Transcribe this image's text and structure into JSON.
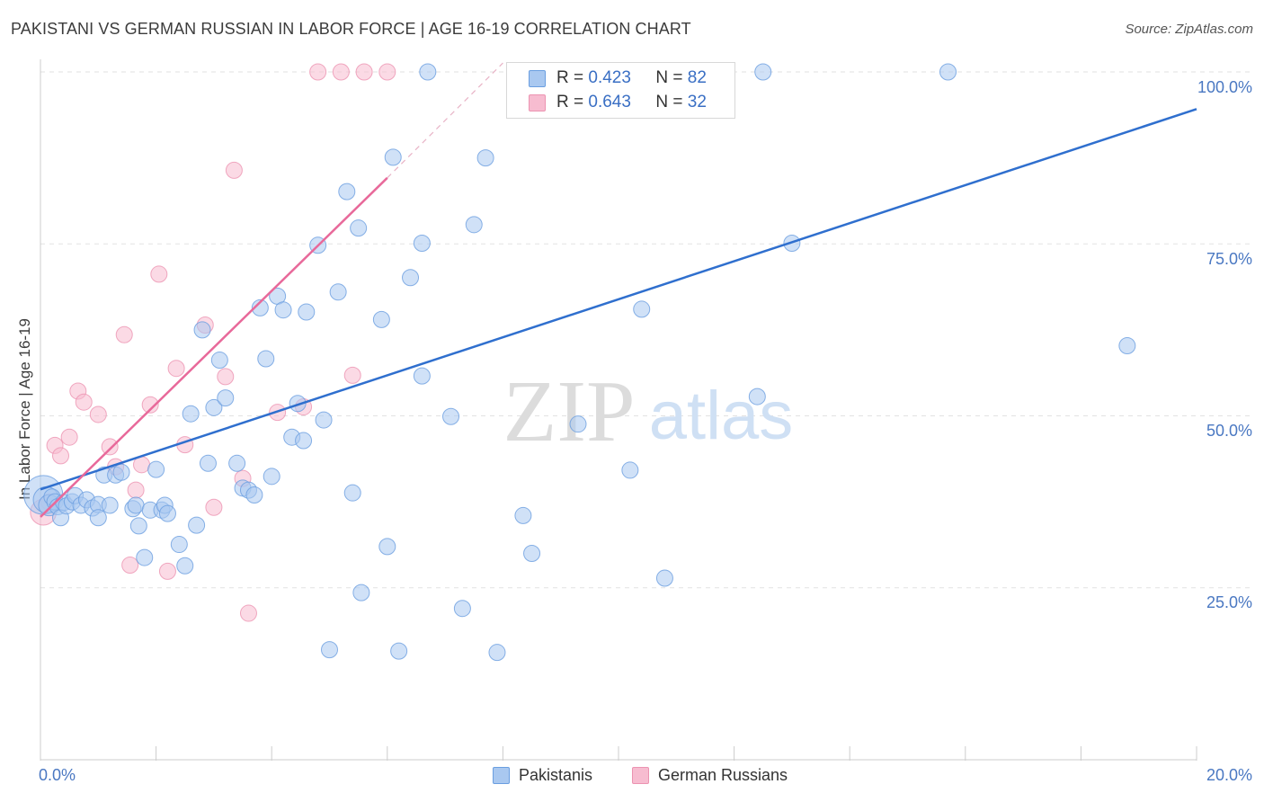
{
  "title": "PAKISTANI VS GERMAN RUSSIAN IN LABOR FORCE | AGE 16-19 CORRELATION CHART",
  "source": "Source: ZipAtlas.com",
  "watermark": {
    "zip": "ZIP",
    "atlas": "atlas"
  },
  "colors": {
    "blue_fill": "#a9c8f0",
    "blue_stroke": "#6a9ee0",
    "blue_line": "#2f6fce",
    "pink_fill": "#f7bcd0",
    "pink_stroke": "#ec93b1",
    "pink_line": "#e8699a",
    "axis_text": "#4a78c2"
  },
  "legend": {
    "rows": [
      {
        "r_label": "R = ",
        "r_value": "0.423",
        "n_label": "N = ",
        "n_value": "82"
      },
      {
        "r_label": "R = ",
        "r_value": "0.643",
        "n_label": "N = ",
        "n_value": "32"
      }
    ]
  },
  "bottom_legend": [
    "Pakistanis",
    "German Russians"
  ],
  "chart_data": {
    "type": "scatter",
    "title": "PAKISTANI VS GERMAN RUSSIAN IN LABOR FORCE | AGE 16-19 CORRELATION CHART",
    "xlabel": "",
    "ylabel": "In Labor Force | Age 16-19",
    "xlim": [
      0,
      20
    ],
    "ylim": [
      0,
      100
    ],
    "x_tick_labels": [
      "0.0%",
      "20.0%"
    ],
    "y_ticks": [
      25,
      50,
      75,
      100
    ],
    "y_tick_labels": [
      "25.0%",
      "50.0%",
      "75.0%",
      "100.0%"
    ],
    "grid": true,
    "series": [
      {
        "name": "Pakistanis",
        "r": 0.423,
        "n": 82,
        "trend": {
          "x": [
            0,
            20
          ],
          "y": [
            39.3,
            94.6
          ]
        },
        "points": [
          [
            0.05,
            38.5,
            2.4
          ],
          [
            0.1,
            37.8,
            1.6
          ],
          [
            0.15,
            37.0,
            1.3
          ],
          [
            0.2,
            38.2,
            1.0
          ],
          [
            0.25,
            37.5,
            1.0
          ],
          [
            0.3,
            36.8,
            1.0
          ],
          [
            0.35,
            35.2,
            1.0
          ],
          [
            0.4,
            37.4,
            1.0
          ],
          [
            0.45,
            36.9,
            1.0
          ],
          [
            0.55,
            37.5,
            1.0
          ],
          [
            0.6,
            38.4,
            1.0
          ],
          [
            0.7,
            37.0,
            1.0
          ],
          [
            0.8,
            37.8,
            1.0
          ],
          [
            0.9,
            36.6,
            1.0
          ],
          [
            1.0,
            37.1,
            1.0
          ],
          [
            1.2,
            37.0,
            1.0
          ],
          [
            1.0,
            35.2,
            1.0
          ],
          [
            1.1,
            41.4,
            1.0
          ],
          [
            1.3,
            41.4,
            1.0
          ],
          [
            1.4,
            41.8,
            1.0
          ],
          [
            1.6,
            36.5,
            1.0
          ],
          [
            1.65,
            37.0,
            1.0
          ],
          [
            1.7,
            34.0,
            1.0
          ],
          [
            1.8,
            29.4,
            1.0
          ],
          [
            1.9,
            36.3,
            1.0
          ],
          [
            2.0,
            42.2,
            1.0
          ],
          [
            2.1,
            36.3,
            1.0
          ],
          [
            2.15,
            37.0,
            1.0
          ],
          [
            2.2,
            35.8,
            1.0
          ],
          [
            2.4,
            31.3,
            1.0
          ],
          [
            2.5,
            28.2,
            1.0
          ],
          [
            2.6,
            50.3,
            1.0
          ],
          [
            2.7,
            34.1,
            1.0
          ],
          [
            2.8,
            62.5,
            1.0
          ],
          [
            2.9,
            43.1,
            1.0
          ],
          [
            3.0,
            51.2,
            1.0
          ],
          [
            3.1,
            58.1,
            1.0
          ],
          [
            3.2,
            52.6,
            1.0
          ],
          [
            3.4,
            43.1,
            1.0
          ],
          [
            3.5,
            39.5,
            1.0
          ],
          [
            3.6,
            39.2,
            1.0
          ],
          [
            3.7,
            38.5,
            1.0
          ],
          [
            3.8,
            65.7,
            1.0
          ],
          [
            3.9,
            58.3,
            1.0
          ],
          [
            4.0,
            41.2,
            1.0
          ],
          [
            4.1,
            67.4,
            1.0
          ],
          [
            4.2,
            65.4,
            1.0
          ],
          [
            4.35,
            46.9,
            1.0
          ],
          [
            4.45,
            51.8,
            1.0
          ],
          [
            4.55,
            46.4,
            1.0
          ],
          [
            4.6,
            65.1,
            1.0
          ],
          [
            4.8,
            74.8,
            1.0
          ],
          [
            4.9,
            49.4,
            1.0
          ],
          [
            5.0,
            16.0,
            1.0
          ],
          [
            5.15,
            68.0,
            1.0
          ],
          [
            5.3,
            82.6,
            1.0
          ],
          [
            5.4,
            38.8,
            1.0
          ],
          [
            5.5,
            77.3,
            1.0
          ],
          [
            5.55,
            24.3,
            1.0
          ],
          [
            5.9,
            64.0,
            1.0
          ],
          [
            6.0,
            31.0,
            1.0
          ],
          [
            6.1,
            87.6,
            1.0
          ],
          [
            6.2,
            15.8,
            1.0
          ],
          [
            6.4,
            70.1,
            1.0
          ],
          [
            6.6,
            55.8,
            1.0
          ],
          [
            6.6,
            75.1,
            1.0
          ],
          [
            6.7,
            100.0,
            1.0
          ],
          [
            7.1,
            49.9,
            1.0
          ],
          [
            7.3,
            22.0,
            1.0
          ],
          [
            7.5,
            77.8,
            1.0
          ],
          [
            7.7,
            87.5,
            1.0
          ],
          [
            7.9,
            15.6,
            1.0
          ],
          [
            8.35,
            35.5,
            1.0
          ],
          [
            8.5,
            30.0,
            1.0
          ],
          [
            9.3,
            48.8,
            1.0
          ],
          [
            10.2,
            42.1,
            1.0
          ],
          [
            10.4,
            65.5,
            1.0
          ],
          [
            10.8,
            26.4,
            1.0
          ],
          [
            12.4,
            52.8,
            1.0
          ],
          [
            12.5,
            100.0,
            1.0
          ],
          [
            13.0,
            75.1,
            1.0
          ],
          [
            15.7,
            100.0,
            1.0
          ],
          [
            18.8,
            60.2,
            1.0
          ]
        ]
      },
      {
        "name": "German Russians",
        "r": 0.643,
        "n": 32,
        "trend": {
          "x": [
            0,
            6.0
          ],
          "y": [
            35.3,
            84.6
          ],
          "dashed_to": {
            "x": 8.0,
            "y": 101.3
          }
        },
        "points": [
          [
            0.05,
            36.0,
            1.6
          ],
          [
            0.15,
            37.5,
            1.0
          ],
          [
            0.25,
            45.7,
            1.0
          ],
          [
            0.35,
            44.2,
            1.0
          ],
          [
            0.5,
            46.9,
            1.0
          ],
          [
            0.65,
            53.6,
            1.0
          ],
          [
            0.75,
            52.0,
            1.0
          ],
          [
            1.0,
            50.2,
            1.0
          ],
          [
            1.2,
            45.5,
            1.0
          ],
          [
            1.3,
            42.6,
            1.0
          ],
          [
            1.45,
            61.8,
            1.0
          ],
          [
            1.55,
            28.3,
            1.0
          ],
          [
            1.65,
            39.2,
            1.0
          ],
          [
            1.75,
            42.9,
            1.0
          ],
          [
            1.9,
            51.6,
            1.0
          ],
          [
            2.05,
            70.6,
            1.0
          ],
          [
            2.2,
            27.4,
            1.0
          ],
          [
            2.35,
            56.9,
            1.0
          ],
          [
            2.5,
            45.8,
            1.0
          ],
          [
            2.85,
            63.2,
            1.0
          ],
          [
            3.0,
            36.7,
            1.0
          ],
          [
            3.2,
            55.7,
            1.0
          ],
          [
            3.35,
            85.7,
            1.0
          ],
          [
            3.5,
            40.9,
            1.0
          ],
          [
            3.6,
            21.3,
            1.0
          ],
          [
            4.1,
            50.5,
            1.0
          ],
          [
            4.55,
            51.3,
            1.0
          ],
          [
            4.8,
            100.0,
            1.0
          ],
          [
            5.2,
            100.0,
            1.0
          ],
          [
            5.4,
            55.9,
            1.0
          ],
          [
            5.6,
            100.0,
            1.0
          ],
          [
            6.0,
            100.0,
            1.0
          ]
        ]
      }
    ]
  }
}
